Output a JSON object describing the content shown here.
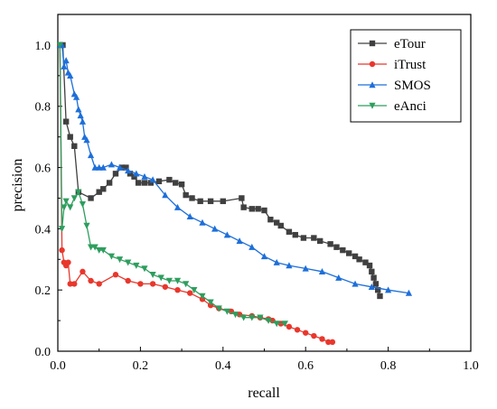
{
  "chart_data": {
    "type": "line",
    "title": "",
    "xlabel": "recall",
    "ylabel": "precision",
    "xlim": [
      0,
      1.0
    ],
    "ylim": [
      0,
      1.1
    ],
    "xticks": [
      0.0,
      0.2,
      0.4,
      0.6,
      0.8,
      1.0
    ],
    "yticks": [
      0.0,
      0.2,
      0.4,
      0.6,
      0.8,
      1.0
    ],
    "xtick_labels": [
      "0.0",
      "0.2",
      "0.4",
      "0.6",
      "0.8",
      "1.0"
    ],
    "ytick_labels": [
      "0.0",
      "0.2",
      "0.4",
      "0.6",
      "0.8",
      "1.0"
    ],
    "grid": false,
    "legend_position": "top-right",
    "series": [
      {
        "name": "eTour",
        "color": "#404040",
        "marker": "square",
        "x": [
          0.005,
          0.012,
          0.02,
          0.03,
          0.04,
          0.05,
          0.08,
          0.1,
          0.11,
          0.125,
          0.14,
          0.155,
          0.165,
          0.175,
          0.185,
          0.195,
          0.21,
          0.225,
          0.245,
          0.27,
          0.285,
          0.3,
          0.31,
          0.325,
          0.345,
          0.37,
          0.4,
          0.445,
          0.45,
          0.47,
          0.485,
          0.5,
          0.515,
          0.53,
          0.54,
          0.56,
          0.575,
          0.595,
          0.62,
          0.635,
          0.66,
          0.675,
          0.69,
          0.705,
          0.72,
          0.73,
          0.745,
          0.755,
          0.76,
          0.765,
          0.77,
          0.775,
          0.78
        ],
        "y": [
          1.0,
          1.0,
          0.75,
          0.7,
          0.67,
          0.52,
          0.5,
          0.52,
          0.53,
          0.55,
          0.58,
          0.6,
          0.6,
          0.58,
          0.57,
          0.55,
          0.55,
          0.55,
          0.555,
          0.56,
          0.55,
          0.545,
          0.51,
          0.5,
          0.49,
          0.49,
          0.49,
          0.5,
          0.47,
          0.465,
          0.465,
          0.46,
          0.43,
          0.42,
          0.41,
          0.39,
          0.38,
          0.37,
          0.37,
          0.36,
          0.35,
          0.34,
          0.33,
          0.32,
          0.31,
          0.3,
          0.29,
          0.28,
          0.26,
          0.24,
          0.22,
          0.2,
          0.18
        ]
      },
      {
        "name": "iTrust",
        "color": "#e8372c",
        "marker": "circle",
        "x": [
          0.005,
          0.01,
          0.015,
          0.02,
          0.025,
          0.03,
          0.04,
          0.06,
          0.08,
          0.1,
          0.14,
          0.17,
          0.2,
          0.23,
          0.26,
          0.29,
          0.32,
          0.35,
          0.37,
          0.39,
          0.42,
          0.44,
          0.47,
          0.49,
          0.51,
          0.52,
          0.54,
          0.56,
          0.58,
          0.6,
          0.62,
          0.64,
          0.655,
          0.665
        ],
        "y": [
          1.0,
          0.33,
          0.29,
          0.28,
          0.29,
          0.22,
          0.22,
          0.26,
          0.23,
          0.22,
          0.25,
          0.23,
          0.22,
          0.22,
          0.21,
          0.2,
          0.19,
          0.17,
          0.15,
          0.14,
          0.13,
          0.12,
          0.115,
          0.11,
          0.105,
          0.1,
          0.09,
          0.08,
          0.07,
          0.06,
          0.05,
          0.04,
          0.03,
          0.03
        ]
      },
      {
        "name": "SMOS",
        "color": "#1e6fd9",
        "marker": "triangle-up",
        "x": [
          0.005,
          0.01,
          0.015,
          0.02,
          0.025,
          0.03,
          0.04,
          0.045,
          0.05,
          0.055,
          0.06,
          0.065,
          0.07,
          0.08,
          0.09,
          0.1,
          0.11,
          0.13,
          0.15,
          0.17,
          0.19,
          0.21,
          0.23,
          0.26,
          0.29,
          0.32,
          0.35,
          0.38,
          0.41,
          0.44,
          0.47,
          0.5,
          0.53,
          0.56,
          0.6,
          0.64,
          0.68,
          0.72,
          0.76,
          0.8,
          0.85
        ],
        "y": [
          1.0,
          1.0,
          0.93,
          0.95,
          0.91,
          0.9,
          0.84,
          0.83,
          0.79,
          0.77,
          0.75,
          0.7,
          0.69,
          0.64,
          0.6,
          0.6,
          0.6,
          0.61,
          0.6,
          0.59,
          0.58,
          0.57,
          0.56,
          0.51,
          0.47,
          0.44,
          0.42,
          0.4,
          0.38,
          0.36,
          0.34,
          0.31,
          0.29,
          0.28,
          0.27,
          0.26,
          0.24,
          0.22,
          0.21,
          0.2,
          0.19
        ]
      },
      {
        "name": "eAnci",
        "color": "#2e9e5e",
        "marker": "triangle-down",
        "x": [
          0.005,
          0.01,
          0.015,
          0.02,
          0.03,
          0.04,
          0.05,
          0.06,
          0.07,
          0.08,
          0.09,
          0.1,
          0.11,
          0.13,
          0.15,
          0.17,
          0.19,
          0.21,
          0.23,
          0.25,
          0.27,
          0.29,
          0.31,
          0.33,
          0.35,
          0.37,
          0.39,
          0.41,
          0.43,
          0.45,
          0.47,
          0.49,
          0.51,
          0.53,
          0.55
        ],
        "y": [
          1.0,
          0.4,
          0.47,
          0.49,
          0.47,
          0.5,
          0.52,
          0.48,
          0.41,
          0.34,
          0.34,
          0.33,
          0.33,
          0.31,
          0.3,
          0.29,
          0.28,
          0.27,
          0.25,
          0.24,
          0.23,
          0.23,
          0.22,
          0.2,
          0.18,
          0.16,
          0.14,
          0.13,
          0.12,
          0.11,
          0.11,
          0.11,
          0.1,
          0.09,
          0.09
        ]
      }
    ]
  }
}
